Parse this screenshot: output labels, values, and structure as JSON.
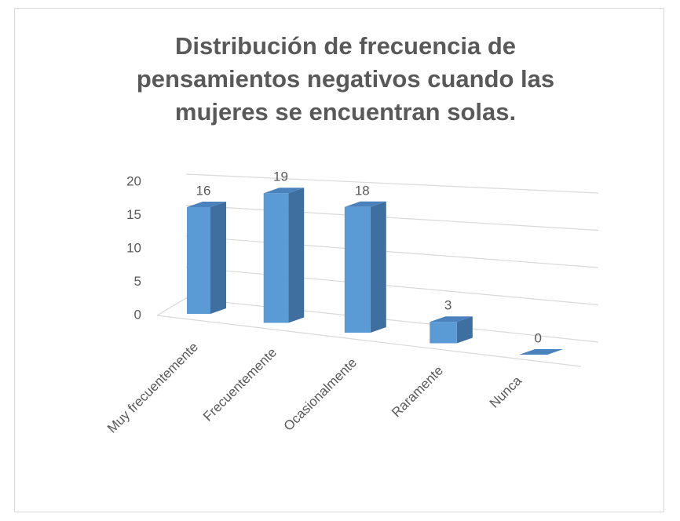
{
  "chart_data": {
    "type": "bar3d",
    "title": "Distribución de frecuencia de pensamientos negativos cuando las mujeres se encuentran solas.",
    "categories": [
      "Muy frecuentemente",
      "Frecuentemente",
      "Ocasionalmente",
      "Raramente",
      "Nunca"
    ],
    "values": [
      16,
      19,
      18,
      3,
      0
    ],
    "color": "#5b9bd5",
    "ylim": [
      0,
      20
    ],
    "yticks": [
      0,
      5,
      10,
      15,
      20
    ],
    "grid": true
  }
}
